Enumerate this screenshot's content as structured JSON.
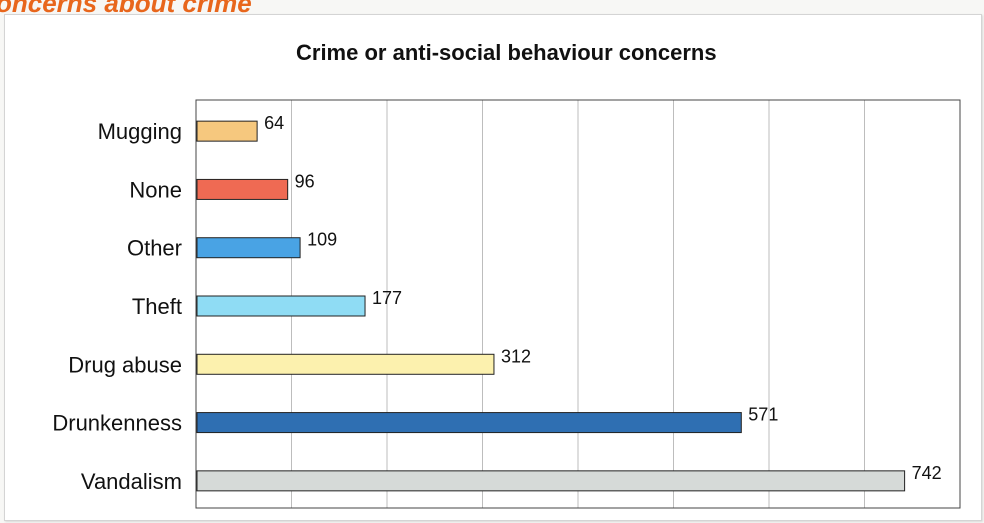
{
  "page": {
    "section_heading": "oncerns about crime"
  },
  "chart_data": {
    "type": "bar",
    "orientation": "horizontal",
    "title": "Crime or anti-social behaviour concerns",
    "xlabel": "",
    "ylabel": "",
    "categories": [
      "Mugging",
      "None",
      "Other",
      "Theft",
      "Drug abuse",
      "Drunkenness",
      "Vandalism"
    ],
    "values": [
      64,
      96,
      109,
      177,
      312,
      571,
      742
    ],
    "colors": [
      "#f6c87e",
      "#ef6a53",
      "#49a3e4",
      "#8fdcf4",
      "#fcf1ae",
      "#2f6fb2",
      "#d6dad8"
    ],
    "xlim": [
      0,
      800
    ],
    "grid": true,
    "legend": "none",
    "data_labels": true
  }
}
